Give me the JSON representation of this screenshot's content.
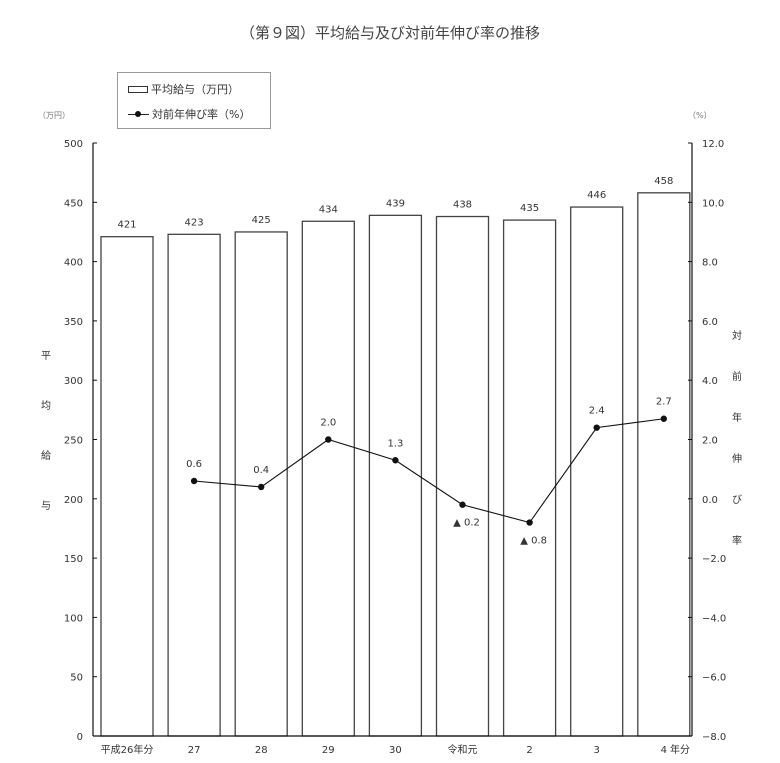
{
  "title": "（第９図）平均給与及び対前年伸び率の推移",
  "legend": {
    "bar_label": "平均給与（万円）",
    "line_label": "対前年伸び率（%）"
  },
  "left_axis": {
    "unit": "（万円）",
    "title_chars": [
      "平",
      "均",
      "給",
      "与"
    ],
    "ticks": [
      "0",
      "50",
      "100",
      "150",
      "200",
      "250",
      "300",
      "350",
      "400",
      "450",
      "500"
    ]
  },
  "right_axis": {
    "unit": "（%）",
    "title_chars": [
      "対",
      "前",
      "年",
      "伸",
      "び",
      "率"
    ],
    "ticks": [
      "-8.0",
      "-6.0",
      "-4.0",
      "-2.0",
      "0.0",
      "2.0",
      "4.0",
      "6.0",
      "8.0",
      "10.0",
      "12.0"
    ]
  },
  "x_axis": {
    "suffix": "年分"
  },
  "chart_data": {
    "type": "bar+line",
    "title": "（第９図）平均給与及び対前年伸び率の推移",
    "categories": [
      "平成26年分",
      "27",
      "28",
      "29",
      "30",
      "令和元",
      "2",
      "3",
      "4"
    ],
    "xlabel": "年分",
    "series": [
      {
        "name": "平均給与（万円）",
        "type": "bar",
        "axis": "left",
        "values": [
          421,
          423,
          425,
          434,
          439,
          438,
          435,
          446,
          458
        ],
        "labels": [
          "421",
          "423",
          "425",
          "434",
          "439",
          "438",
          "435",
          "446",
          "458"
        ]
      },
      {
        "name": "対前年伸び率（%）",
        "type": "line",
        "axis": "right",
        "values": [
          null,
          0.6,
          0.4,
          2.0,
          1.3,
          -0.2,
          -0.8,
          2.4,
          2.7
        ],
        "labels": [
          "",
          "0.6",
          "0.4",
          "2.0",
          "1.3",
          "▲ 0.2",
          "▲ 0.8",
          "2.4",
          "2.7"
        ]
      }
    ],
    "ylabel": "平均給与",
    "ylim": [
      0,
      500
    ],
    "y2label": "対前年伸び率",
    "y2lim": [
      -8.0,
      12.0
    ],
    "left_unit": "（万円）",
    "right_unit": "（%）",
    "grid": false,
    "legend_position": "top-left"
  }
}
